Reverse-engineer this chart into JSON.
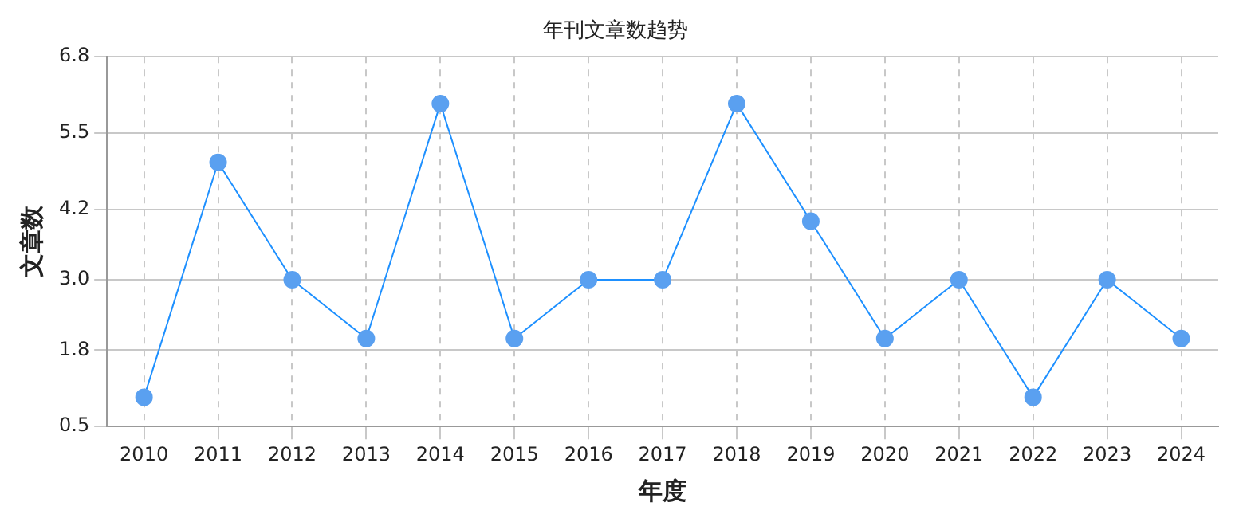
{
  "chart_data": {
    "type": "line",
    "title": "年刊文章数趋势",
    "xlabel": "年度",
    "ylabel": "文章数",
    "categories": [
      "2010",
      "2011",
      "2012",
      "2013",
      "2014",
      "2015",
      "2016",
      "2017",
      "2018",
      "2019",
      "2020",
      "2021",
      "2022",
      "2023",
      "2024"
    ],
    "series": [
      {
        "color": "#1e90ff",
        "values": [
          1,
          5,
          3,
          2,
          6,
          2,
          3,
          3,
          6,
          4,
          2,
          3,
          1,
          3,
          2
        ]
      }
    ],
    "ylim": [
      0.5,
      6.8
    ],
    "yticks": [
      0.5,
      1.8,
      {
        "value": 3,
        "label": "3.0"
      },
      4.2,
      5.5,
      6.8
    ],
    "grid": true,
    "marker": "circle",
    "line_style": "solid",
    "legend": false
  }
}
